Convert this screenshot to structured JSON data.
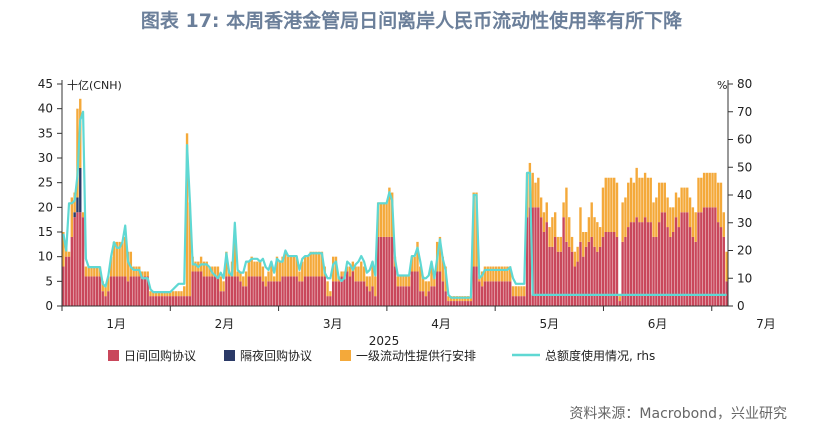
{
  "title": "图表 17: 本周香港金管局日间离岸人民币流动性使用率有所下降",
  "source": "资料来源：Macrobond，兴业研究",
  "chart_data": {
    "type": "bar",
    "stacked": true,
    "year_label": "2025",
    "left_unit": "十亿(CNH)",
    "right_unit": "%",
    "ylim": [
      0,
      45
    ],
    "y2lim": [
      0,
      80
    ],
    "y_ticks": [
      0,
      5,
      10,
      15,
      20,
      25,
      30,
      35,
      40,
      45
    ],
    "y2_ticks": [
      0,
      10,
      20,
      30,
      40,
      50,
      60,
      70,
      80
    ],
    "x_ticks": [
      "1月",
      "2月",
      "3月",
      "4月",
      "5月",
      "6月",
      "7月"
    ],
    "grid": false,
    "legend_position": "bottom",
    "colors": {
      "intraday": "#c9475b",
      "overnight": "#2b3a67",
      "liquidity": "#f4a93a",
      "line": "#5fd8d3"
    },
    "series": [
      {
        "name": "日间回购协议",
        "type": "bar",
        "axis": "left",
        "values": [
          8,
          10,
          10,
          14,
          18,
          19,
          19,
          18,
          6,
          6,
          6,
          6,
          6,
          6,
          3,
          2,
          3,
          6,
          6,
          6,
          6,
          6,
          6,
          5,
          6,
          6,
          6,
          6,
          6,
          6,
          6,
          2,
          2,
          2,
          2,
          2,
          2,
          2,
          2,
          2,
          2,
          2,
          2,
          2,
          2,
          2,
          7,
          7,
          7,
          7,
          6,
          6,
          6,
          6,
          6,
          6,
          3,
          3,
          6,
          6,
          6,
          6,
          6,
          5,
          4,
          4,
          6,
          6,
          6,
          6,
          6,
          5,
          4,
          5,
          5,
          5,
          5,
          5,
          6,
          6,
          6,
          6,
          6,
          6,
          5,
          5,
          6,
          6,
          6,
          6,
          6,
          6,
          6,
          6,
          2,
          2,
          5,
          5,
          5,
          6,
          6,
          7,
          6,
          7,
          5,
          5,
          5,
          5,
          4,
          3,
          4,
          2,
          14,
          14,
          14,
          14,
          14,
          14,
          8,
          4,
          4,
          4,
          4,
          4,
          7,
          7,
          7,
          3,
          3,
          2,
          3,
          4,
          4,
          7,
          7,
          5,
          3,
          1,
          1,
          1,
          1,
          1,
          1,
          1,
          1,
          1,
          8,
          8,
          5,
          4,
          5,
          5,
          5,
          5,
          5,
          5,
          5,
          5,
          5,
          5,
          2,
          2,
          2,
          2,
          2,
          18,
          20,
          20,
          20,
          20,
          18,
          15,
          17,
          12,
          12,
          14,
          11,
          11,
          18,
          13,
          12,
          11,
          8,
          9,
          13,
          10,
          12,
          13,
          14,
          12,
          11,
          12,
          14,
          15,
          15,
          15,
          15,
          14,
          1,
          13,
          14,
          16,
          17,
          17,
          18,
          17,
          17,
          18,
          17,
          17,
          14,
          14,
          17,
          19,
          19,
          16,
          14,
          15,
          18,
          16,
          19,
          19,
          19,
          16,
          14,
          13,
          19,
          19,
          20,
          20,
          20,
          20,
          20,
          17,
          16,
          14,
          5
        ]
      },
      {
        "name": "隔夜回购协议",
        "type": "bar",
        "axis": "left",
        "values": [
          0,
          0,
          0,
          0,
          1,
          3,
          9,
          0,
          0,
          0,
          0,
          0,
          0,
          0,
          0,
          0,
          0,
          0,
          0,
          0,
          0,
          0,
          0,
          0,
          0,
          0,
          0,
          0,
          0,
          0,
          0,
          0,
          0,
          0,
          0,
          0,
          0,
          0,
          0,
          0,
          0,
          0,
          0,
          0,
          0,
          0,
          0,
          0,
          0,
          0,
          0,
          0,
          0,
          0,
          0,
          0,
          0,
          0,
          0,
          0,
          0,
          0,
          0,
          0,
          0,
          0,
          0,
          0,
          0,
          0,
          0,
          0,
          0,
          0,
          0,
          0,
          0,
          0,
          0,
          0,
          0,
          0,
          0,
          0,
          0,
          0,
          0,
          0,
          0,
          0,
          0,
          0,
          0,
          0,
          0,
          0,
          0,
          0,
          0,
          0,
          0,
          0,
          0,
          0,
          0,
          0,
          0,
          0,
          0,
          0,
          0,
          0,
          0,
          0,
          0,
          0,
          0,
          0,
          0,
          0,
          0,
          0,
          0,
          0,
          0,
          0,
          0,
          0,
          0,
          0,
          0,
          0,
          0,
          0,
          0,
          0,
          0,
          0,
          0,
          0,
          0,
          0,
          0,
          0,
          0,
          0,
          0,
          0,
          0,
          0,
          0,
          0,
          0,
          0,
          0,
          0,
          0,
          0,
          0,
          0,
          0,
          0,
          0,
          0,
          0,
          0,
          0,
          0,
          0,
          0,
          0,
          0,
          0,
          0,
          0,
          0,
          0,
          0,
          0,
          0,
          0,
          0,
          0,
          0,
          0,
          0,
          0,
          0,
          0,
          0,
          0,
          0,
          0,
          0,
          0,
          0,
          0,
          0,
          0,
          0,
          0,
          0,
          0,
          0,
          0,
          0,
          0,
          0,
          0,
          0,
          0,
          0,
          0,
          0,
          0,
          0,
          0,
          0,
          0,
          0,
          0,
          0,
          0,
          0,
          0,
          0,
          0,
          0,
          0,
          0,
          0,
          0,
          0,
          0,
          0,
          0,
          0,
          0,
          0,
          0,
          0,
          0,
          0
        ]
      },
      {
        "name": "一级流动性提供行安排",
        "type": "bar",
        "axis": "left",
        "values": [
          7,
          2,
          1,
          8,
          4,
          18,
          14,
          1,
          2,
          2,
          2,
          2,
          2,
          2,
          2,
          2,
          3,
          4,
          7,
          7,
          7,
          7,
          8,
          6,
          5,
          2,
          2,
          2,
          1,
          1,
          1,
          1,
          1,
          1,
          1,
          1,
          1,
          1,
          1,
          1,
          1,
          1,
          1,
          2,
          33,
          19,
          3,
          2,
          2,
          3,
          3,
          3,
          2,
          2,
          2,
          2,
          3,
          2,
          5,
          1,
          3,
          10,
          1,
          2,
          2,
          3,
          3,
          4,
          3,
          3,
          3,
          3,
          2,
          2,
          4,
          1,
          5,
          4,
          4,
          5,
          4,
          4,
          4,
          4,
          2,
          4,
          4,
          4,
          5,
          5,
          5,
          5,
          5,
          2,
          3,
          1,
          5,
          5,
          1,
          1,
          1,
          1,
          2,
          2,
          3,
          3,
          4,
          3,
          2,
          3,
          5,
          4,
          7,
          7,
          7,
          7,
          10,
          9,
          2,
          2,
          2,
          2,
          2,
          2,
          3,
          3,
          6,
          5,
          3,
          3,
          2,
          4,
          2,
          6,
          7,
          5,
          5,
          1,
          1,
          1,
          1,
          1,
          1,
          1,
          1,
          1,
          15,
          15,
          1,
          3,
          3,
          3,
          3,
          3,
          3,
          3,
          3,
          3,
          3,
          3,
          2,
          2,
          2,
          2,
          2,
          9,
          9,
          7,
          5,
          6,
          4,
          4,
          4,
          4,
          6,
          5,
          3,
          3,
          3,
          11,
          6,
          3,
          3,
          3,
          7,
          5,
          3,
          5,
          7,
          6,
          6,
          4,
          10,
          11,
          11,
          11,
          11,
          11,
          1,
          8,
          8,
          9,
          9,
          8,
          10,
          9,
          9,
          9,
          9,
          9,
          7,
          8,
          8,
          6,
          6,
          6,
          6,
          5,
          5,
          6,
          5,
          5,
          5,
          6,
          6,
          6,
          7,
          7,
          7,
          7,
          7,
          7,
          7,
          8,
          9,
          5,
          6
        ]
      },
      {
        "name": "总额度使用情况, rhs",
        "type": "line",
        "axis": "right",
        "values": [
          26,
          20,
          37,
          37,
          38,
          47,
          67,
          70,
          17,
          14,
          14,
          14,
          14,
          14,
          8,
          7,
          11,
          18,
          23,
          21,
          21,
          23,
          29,
          16,
          14,
          13,
          13,
          13,
          10,
          10,
          10,
          6,
          5,
          5,
          5,
          5,
          5,
          5,
          5,
          6,
          7,
          8,
          8,
          8,
          58,
          38,
          15,
          15,
          14,
          15,
          15,
          15,
          14,
          12,
          11,
          10,
          12,
          10,
          19,
          12,
          11,
          30,
          13,
          12,
          12,
          16,
          16,
          17,
          17,
          17,
          16,
          17,
          14,
          13,
          16,
          12,
          17,
          16,
          16,
          20,
          18,
          18,
          18,
          18,
          13,
          17,
          18,
          18,
          19,
          19,
          19,
          19,
          19,
          12,
          10,
          10,
          15,
          16,
          10,
          9,
          10,
          16,
          15,
          13,
          15,
          16,
          18,
          16,
          12,
          13,
          16,
          11,
          37,
          37,
          37,
          37,
          41,
          38,
          17,
          11,
          11,
          11,
          11,
          11,
          18,
          18,
          21,
          16,
          10,
          10,
          11,
          16,
          10,
          17,
          24,
          17,
          13,
          4,
          3,
          3,
          3,
          3,
          3,
          3,
          3,
          3,
          40,
          40,
          10,
          11,
          13,
          13,
          13,
          13,
          13,
          13,
          13,
          13,
          13,
          14,
          10,
          8,
          8,
          8,
          8,
          48,
          48,
          4,
          4,
          4,
          4,
          4,
          4,
          4,
          4,
          4,
          4,
          4,
          4,
          4,
          4,
          4,
          4,
          4,
          4,
          4,
          4,
          4,
          4,
          4,
          4,
          4,
          4,
          4,
          4,
          4,
          4,
          4,
          4,
          4,
          4,
          4,
          4,
          4,
          4,
          4,
          4,
          4,
          4,
          4,
          4,
          4,
          4,
          4,
          4,
          4,
          4,
          4,
          4,
          4,
          4,
          4,
          4,
          4,
          4,
          4,
          4,
          4,
          4,
          4,
          4,
          4,
          4,
          4,
          4,
          4,
          4,
          4,
          4,
          4,
          4,
          4,
          4,
          4,
          4,
          4,
          4,
          4,
          4,
          4,
          4,
          4,
          4,
          4
        ]
      }
    ]
  }
}
